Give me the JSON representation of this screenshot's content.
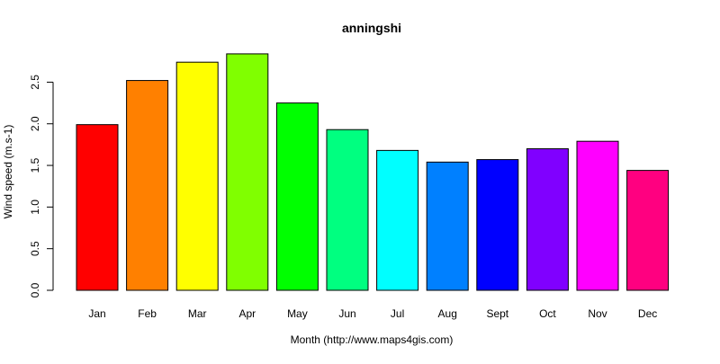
{
  "chart_data": {
    "type": "bar",
    "title": "anningshi",
    "xlabel": "Month (http://www.maps4gis.com)",
    "ylabel": "Wind speed (m.s-1)",
    "categories": [
      "Jan",
      "Feb",
      "Mar",
      "Apr",
      "May",
      "Jun",
      "Jul",
      "Aug",
      "Sept",
      "Oct",
      "Nov",
      "Dec"
    ],
    "values": [
      1.99,
      2.52,
      2.74,
      2.84,
      2.25,
      1.93,
      1.68,
      1.54,
      1.57,
      1.7,
      1.79,
      1.44
    ],
    "colors": [
      "#FF0000",
      "#FF8000",
      "#FFFF00",
      "#80FF00",
      "#00FF00",
      "#00FF80",
      "#00FFFF",
      "#0080FF",
      "#0000FF",
      "#8000FF",
      "#FF00FF",
      "#FF0080"
    ],
    "yticks": [
      "0.0",
      "0.5",
      "1.0",
      "1.5",
      "2.0",
      "2.5"
    ],
    "ylim": [
      0,
      2.85
    ],
    "grid": false,
    "legend": "none"
  }
}
